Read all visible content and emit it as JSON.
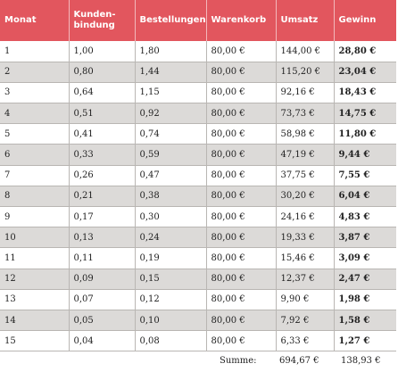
{
  "table": {
    "headers": [
      "Monat",
      "Kunden-\nbindung",
      "Bestellungen",
      "Warenkorb",
      "Umsatz",
      "Gewinn"
    ],
    "rows": [
      [
        "1",
        "1,00",
        "1,80",
        "80,00 €",
        "144,00 €",
        "28,80 €"
      ],
      [
        "2",
        "0,80",
        "1,44",
        "80,00 €",
        "115,20 €",
        "23,04 €"
      ],
      [
        "3",
        "0,64",
        "1,15",
        "80,00 €",
        "92,16 €",
        "18,43 €"
      ],
      [
        "4",
        "0,51",
        "0,92",
        "80,00 €",
        "73,73 €",
        "14,75 €"
      ],
      [
        "5",
        "0,41",
        "0,74",
        "80,00 €",
        "58,98 €",
        "11,80 €"
      ],
      [
        "6",
        "0,33",
        "0,59",
        "80,00 €",
        "47,19 €",
        "9,44 €"
      ],
      [
        "7",
        "0,26",
        "0,47",
        "80,00 €",
        "37,75 €",
        "7,55 €"
      ],
      [
        "8",
        "0,21",
        "0,38",
        "80,00 €",
        "30,20 €",
        "6,04 €"
      ],
      [
        "9",
        "0,17",
        "0,30",
        "80,00 €",
        "24,16 €",
        "4,83 €"
      ],
      [
        "10",
        "0,13",
        "0,24",
        "80,00 €",
        "19,33 €",
        "3,87 €"
      ],
      [
        "11",
        "0,11",
        "0,19",
        "80,00 €",
        "15,46 €",
        "3,09 €"
      ],
      [
        "12",
        "0,09",
        "0,15",
        "80,00 €",
        "12,37 €",
        "2,47 €"
      ],
      [
        "13",
        "0,07",
        "0,12",
        "80,00 €",
        "9,90 €",
        "1,98 €"
      ],
      [
        "14",
        "0,05",
        "0,10",
        "80,00 €",
        "7,92 €",
        "1,58 €"
      ],
      [
        "15",
        "0,04",
        "0,08",
        "80,00 €",
        "6,33 €",
        "1,27 €"
      ]
    ]
  },
  "summary": {
    "label": "Summe:",
    "umsatz": "694,67 €",
    "gewinn": "138,93 €"
  },
  "colors": {
    "header_bg": "#e2565e",
    "header_text": "#ffffff",
    "stripe": "#dcdad8"
  }
}
